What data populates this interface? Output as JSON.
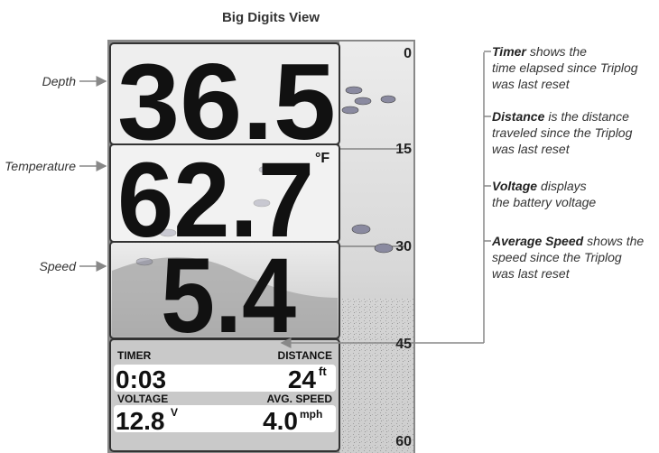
{
  "title": "Big Digits View",
  "display": {
    "depth": "36.5",
    "temperature": "62.7",
    "temperature_unit": "°F",
    "speed": "5.4",
    "timer": {
      "label": "TIMER",
      "value": "0:03"
    },
    "distance": {
      "label": "DISTANCE",
      "value": "24",
      "unit": "ft"
    },
    "voltage": {
      "label": "VOLTAGE",
      "value": "12.8",
      "unit": "V"
    },
    "avg_speed": {
      "label": "AVG. SPEED",
      "value": "4.0",
      "unit": "mph"
    },
    "depth_scale": [
      "0",
      "15",
      "30",
      "45",
      "60"
    ]
  },
  "left_callouts": [
    "Depth",
    "Temperature",
    "Speed"
  ],
  "right_callouts": [
    {
      "term": "Timer",
      "lines": [
        "shows the",
        "time elapsed since Triplog",
        "was last reset"
      ]
    },
    {
      "term": "Distance",
      "lines": [
        "is the distance",
        "traveled since the Triplog",
        "was last reset"
      ]
    },
    {
      "term": "Voltage",
      "lines": [
        "displays",
        "the battery voltage"
      ]
    },
    {
      "term": "Average Speed",
      "lines": [
        "shows the",
        "speed since the Triplog",
        "was last reset"
      ]
    }
  ]
}
